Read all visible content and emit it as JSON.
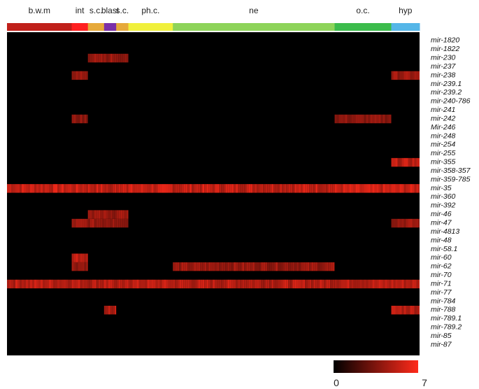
{
  "chart_data": {
    "type": "heatmap",
    "title": "",
    "xlabel": "",
    "ylabel": "",
    "groups": [
      {
        "label": "b.w.m",
        "color": "#c0201a",
        "span": 16
      },
      {
        "label": "int",
        "color": "#ff2020",
        "span": 4
      },
      {
        "label": "s.c.",
        "color": "#e6a93a",
        "span": 4
      },
      {
        "label": "blast",
        "color": "#7b2fa8",
        "span": 3
      },
      {
        "label": "s.c.",
        "color": "#e6a93a",
        "span": 3
      },
      {
        "label": "ph.c.",
        "color": "#f0f03c",
        "span": 11
      },
      {
        "label": "ne",
        "color": "#8ed45a",
        "span": 40
      },
      {
        "label": "o.c.",
        "color": "#3cbc4c",
        "span": 14
      },
      {
        "label": "hyp",
        "color": "#55b6e8",
        "span": 7
      }
    ],
    "rows": [
      "mir-1820",
      "mir-1822",
      "mir-230",
      "mir-237",
      "mir-238",
      "mir-239.1",
      "mir-239.2",
      "mir-240-786",
      "mir-241",
      "mir-242",
      "Mir-246",
      "mir-248",
      "mir-254",
      "mir-255",
      "mir-355",
      "mir-358-357",
      "mir-359-785",
      "mir-35",
      "mir-360",
      "mir-392",
      "mir-46",
      "mir-47",
      "mir-4813",
      "mir-48",
      "mir-58.1",
      "mir-60",
      "mir-62",
      "mir-70",
      "mir-71",
      "mir-77",
      "mir-784",
      "mir-788",
      "mir-789.1",
      "mir-789.2",
      "mir-85",
      "mir-87"
    ],
    "scale": {
      "min": 0,
      "max": 7,
      "min_label": "0",
      "max_label": "7",
      "colors": [
        "#000000",
        "#ff2a1a"
      ]
    },
    "high_expression": [
      {
        "row": "mir-35",
        "groups": [
          "b.w.m",
          "int",
          "s.c.",
          "blast",
          "ph.c.",
          "ne",
          "o.c.",
          "hyp"
        ],
        "level": 6.5
      },
      {
        "row": "mir-71",
        "groups": [
          "b.w.m",
          "int",
          "s.c.",
          "blast",
          "ph.c.",
          "ne",
          "o.c.",
          "hyp"
        ],
        "level": 6
      },
      {
        "row": "mir-60",
        "groups": [
          "int"
        ],
        "level": 6.5
      },
      {
        "row": "mir-62",
        "groups": [
          "int",
          "ne"
        ],
        "level": 5
      },
      {
        "row": "mir-238",
        "groups": [
          "int",
          "hyp"
        ],
        "level": 5
      },
      {
        "row": "mir-47",
        "groups": [
          "int",
          "s.c.",
          "blast",
          "hyp"
        ],
        "level": 5
      },
      {
        "row": "mir-46",
        "groups": [
          "blast",
          "s.c."
        ],
        "level": 5
      },
      {
        "row": "mir-355",
        "groups": [
          "hyp"
        ],
        "level": 6
      },
      {
        "row": "mir-788",
        "groups": [
          "blast",
          "hyp"
        ],
        "level": 6
      },
      {
        "row": "mir-230",
        "groups": [
          "s.c.",
          "blast"
        ],
        "level": 5
      },
      {
        "row": "mir-242",
        "groups": [
          "int",
          "o.c."
        ],
        "level": 4.5
      }
    ]
  }
}
